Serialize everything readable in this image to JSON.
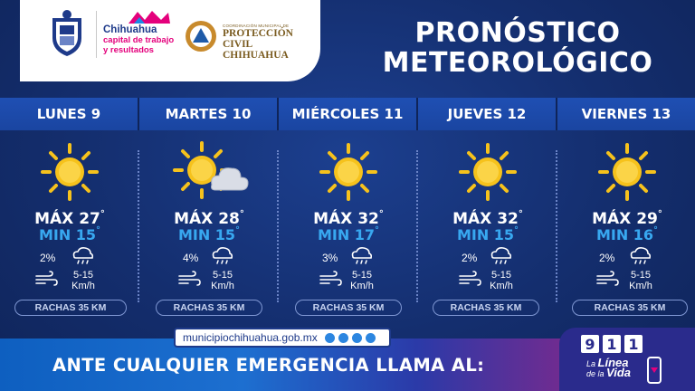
{
  "header": {
    "municipio": {
      "line1": "Chihuahua",
      "line2": "capital de trabajo",
      "line3": "y resultados"
    },
    "proteccion_civil": {
      "sub": "COORDINACIÓN MUNICIPAL DE",
      "main1": "PROTECCIÓN CIVIL",
      "main2": "CHIHUAHUA"
    },
    "title1": "PRONÓSTICO",
    "title2": "METEOROLÓGICO"
  },
  "days": [
    {
      "name": "LUNES 9",
      "icon": "sun",
      "max": "MÁX 27",
      "min": "MIN 15",
      "rain": "2%",
      "wind": "5-15",
      "wind_unit": "Km/h",
      "rachas": "RACHAS 35 KM"
    },
    {
      "name": "MARTES 10",
      "icon": "sun-cloud",
      "max": "MÁX 28",
      "min": "MIN 15",
      "rain": "4%",
      "wind": "5-15",
      "wind_unit": "Km/h",
      "rachas": "RACHAS 35 KM"
    },
    {
      "name": "MIÉRCOLES 11",
      "icon": "sun",
      "max": "MÁX 32",
      "min": "MIN 17",
      "rain": "3%",
      "wind": "5-15",
      "wind_unit": "Km/h",
      "rachas": "RACHAS 35 KM"
    },
    {
      "name": "JUEVES 12",
      "icon": "sun",
      "max": "MÁX 32",
      "min": "MIN 15",
      "rain": "2%",
      "wind": "5-15",
      "wind_unit": "Km/h",
      "rachas": "RACHAS 35 KM"
    },
    {
      "name": "VIERNES 13",
      "icon": "sun",
      "max": "MÁX 29",
      "min": "MIN 16",
      "rain": "2%",
      "wind": "5-15",
      "wind_unit": "Km/h",
      "rachas": "RACHAS 35 KM"
    }
  ],
  "degree": "°",
  "footer": {
    "url": "municipiochihuahua.gob.mx",
    "emergency": "ANTE CUALQUIER EMERGENCIA LLAMA AL:",
    "n1": "9",
    "n2": "1",
    "n3": "1",
    "linea_la": "La",
    "linea_linea": "Línea",
    "linea_de": "de la",
    "linea_vida": "Vida"
  },
  "colors": {
    "background": "#16306e",
    "band": "#1f4fb3",
    "min_temp": "#38a8f0",
    "sun": "#f6c21c"
  }
}
